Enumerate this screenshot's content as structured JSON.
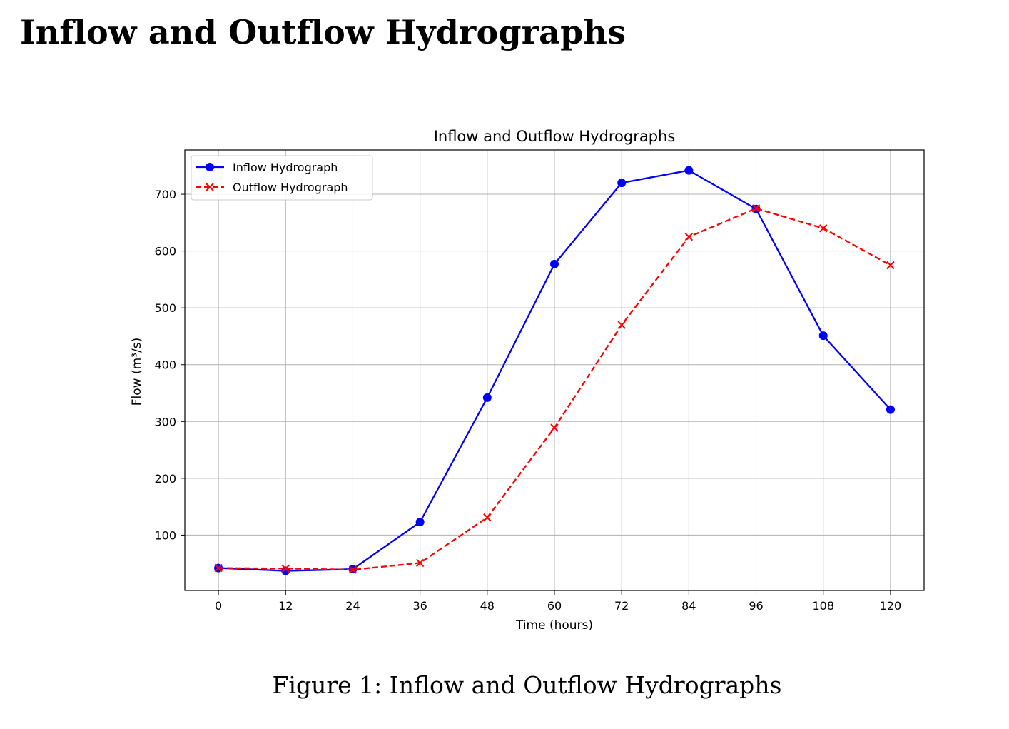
{
  "document": {
    "heading": "Inflow and Outflow Hydrographs",
    "caption": "Figure 1: Inflow and Outflow Hydrographs"
  },
  "chart_data": {
    "type": "line",
    "title": "Inflow and Outflow Hydrographs",
    "xlabel": "Time (hours)",
    "ylabel": "Flow (m³/s)",
    "x": [
      0,
      12,
      24,
      36,
      48,
      60,
      72,
      84,
      96,
      108,
      120
    ],
    "xticks": [
      0,
      12,
      24,
      36,
      48,
      60,
      72,
      84,
      96,
      108,
      120
    ],
    "yticks": [
      100,
      200,
      300,
      400,
      500,
      600,
      700
    ],
    "xlim": [
      -6,
      126
    ],
    "ylim": [
      2.5,
      778
    ],
    "grid": true,
    "legend_position": "upper-left",
    "series": [
      {
        "name": "Inflow Hydrograph",
        "values": [
          42,
          37,
          40,
          123,
          342,
          577,
          720,
          742,
          674,
          451,
          321
        ],
        "color": "#0000ff",
        "line_style": "solid",
        "marker": "circle"
      },
      {
        "name": "Outflow Hydrograph",
        "values": [
          42,
          41,
          39,
          51,
          131,
          289,
          470,
          625,
          675,
          640,
          575
        ],
        "color": "#ff0000",
        "line_style": "dashed",
        "marker": "x"
      }
    ]
  }
}
